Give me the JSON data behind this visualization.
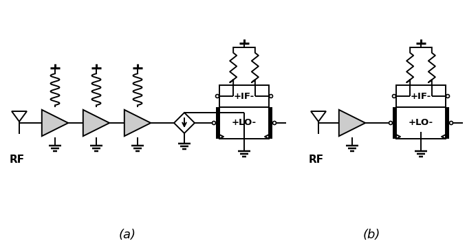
{
  "bg_color": "#ffffff",
  "line_color": "#000000",
  "amp_fill": "#cccccc",
  "fig_width": 6.79,
  "fig_height": 3.64,
  "label_a": "(a)",
  "label_b": "(b)",
  "rf_label": "RF",
  "if_label": "+IF-",
  "lo_label": "+LO-",
  "dpi": 100
}
